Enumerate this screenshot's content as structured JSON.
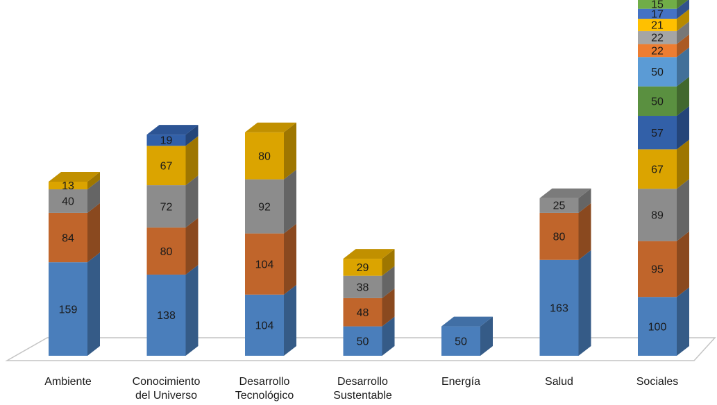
{
  "chart_data": {
    "type": "bar",
    "stacked": true,
    "three_d": true,
    "categories": [
      "Ambiente",
      "Conocimiento\ndel Universo",
      "Desarrollo\nTecnológico",
      "Desarrollo\nSustentable",
      "Energía",
      "Salud",
      "Sociales"
    ],
    "stacks": [
      [
        159,
        84,
        40,
        13
      ],
      [
        138,
        80,
        72,
        67,
        19
      ],
      [
        104,
        104,
        92,
        80
      ],
      [
        50,
        48,
        38,
        29
      ],
      [
        50
      ],
      [
        163,
        80,
        25
      ],
      [
        100,
        95,
        89,
        67,
        57,
        50,
        50,
        22,
        22,
        21,
        17,
        15
      ]
    ],
    "segment_colors": [
      "#4a7ebb",
      "#c0652b",
      "#8c8c8c",
      "#dba400",
      "#3260a8",
      "#5a9040",
      "#5b9bd5",
      "#ed7d31",
      "#a5a5a5",
      "#ffc000",
      "#4472c4",
      "#70ad47"
    ],
    "title": "",
    "xlabel": "",
    "ylabel": "",
    "legend": "none",
    "grid": false
  }
}
